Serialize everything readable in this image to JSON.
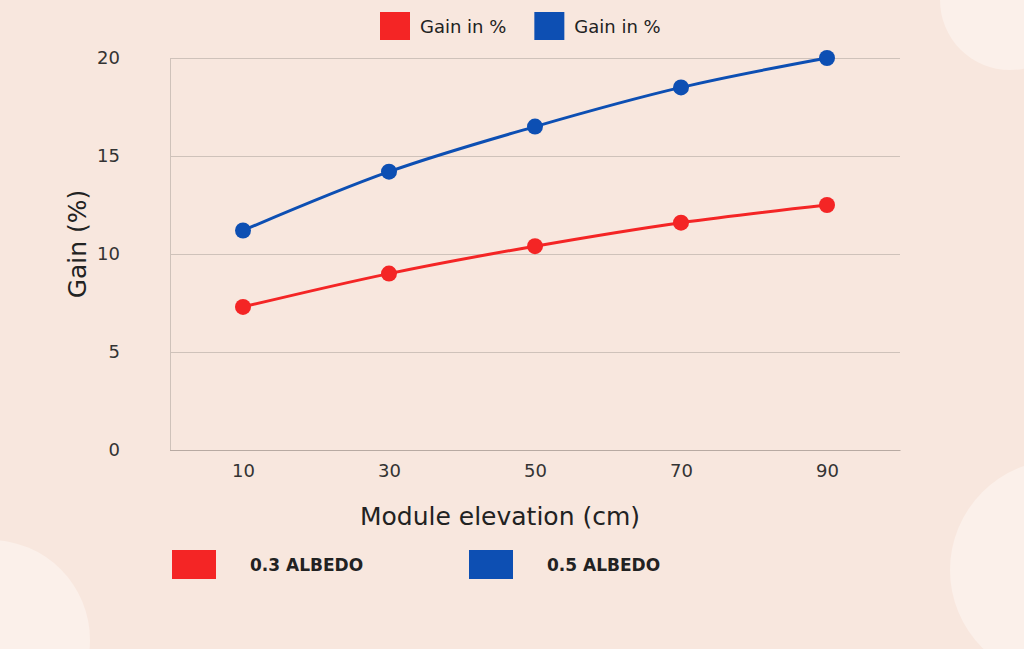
{
  "chart_data": {
    "type": "line",
    "x_label": "Module elevation (cm)",
    "y_label": "Gain (%)",
    "categories": [
      "10",
      "30",
      "50",
      "70",
      "90"
    ],
    "series": [
      {
        "name": "Gain in %",
        "color": "#f42525",
        "marker": "circle",
        "line_style": "solid",
        "values": [
          7.3,
          9.0,
          10.4,
          11.6,
          12.5
        ]
      },
      {
        "name": "Gain in %",
        "color": "#0d4fb3",
        "marker": "circle",
        "line_style": "solid",
        "values": [
          11.2,
          14.2,
          16.5,
          18.5,
          20.0
        ]
      }
    ],
    "annotations": [
      {
        "text": "0.3 ALBEDO",
        "color": "#f42525"
      },
      {
        "text": "0.5 ALBEDO",
        "color": "#0d4fb3"
      }
    ],
    "ylim": [
      0,
      20
    ],
    "yticks": [
      0,
      5,
      10,
      15,
      20
    ],
    "grid": true,
    "legend": "top"
  }
}
